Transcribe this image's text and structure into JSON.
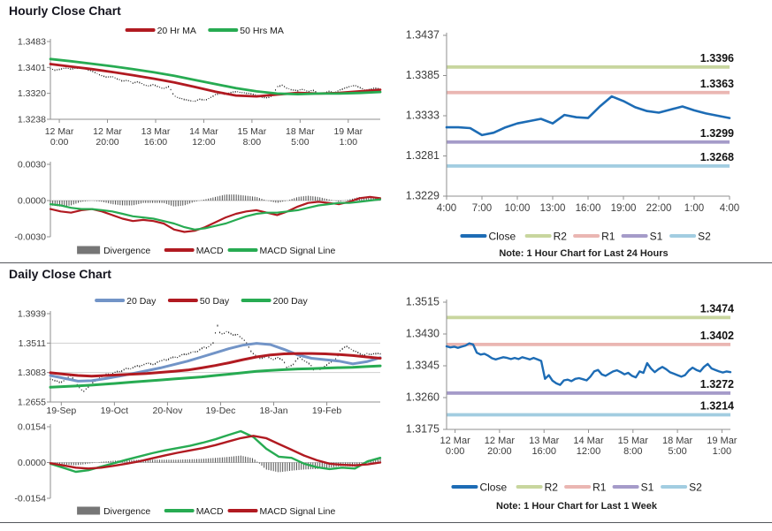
{
  "page": {
    "background": "#ffffff"
  },
  "sections": {
    "hourly": {
      "title": "Hourly Close Chart"
    },
    "daily": {
      "title": "Daily Close Chart"
    }
  },
  "notes": {
    "hourly": "Note: 1 Hour Chart for Last 24 Hours",
    "daily": "Note: 1 Hour Chart for  Last 1 Week"
  },
  "colors": {
    "dark_red": "#b11a21",
    "green": "#27ab52",
    "steel_blue": "#7294c7",
    "close_blue": "#1d6cb5",
    "r2": "#c8d69e",
    "r1": "#eab6b2",
    "s1": "#a59bc9",
    "s2": "#a2cde1",
    "divergence_gray": "#4f4f4f",
    "price_bar": "#1b1b1b",
    "axis": "#8f8f8f",
    "grid": "#cfcfcf"
  },
  "chart_data": [
    {
      "id": "hourly-price",
      "type": "price",
      "ylim": [
        1.3238,
        1.3483
      ],
      "yticks": [
        "1.3483",
        "1.3401",
        "1.3320",
        "1.3238"
      ],
      "xticks": [
        [
          "12 Mar",
          "0:00"
        ],
        [
          "12 Mar",
          "20:00"
        ],
        [
          "13 Mar",
          "16:00"
        ],
        [
          "14 Mar",
          "12:00"
        ],
        [
          "15 Mar",
          "8:00"
        ],
        [
          "18 Mar",
          "5:00"
        ],
        [
          "19 Mar",
          "1:00"
        ]
      ],
      "legend": [
        {
          "label": "20 Hr MA",
          "color": "#b11a21",
          "swatch": "line"
        },
        {
          "label": "50 Hrs MA",
          "color": "#27ab52",
          "swatch": "line"
        }
      ],
      "price_bars": {
        "color": "#1b1b1b",
        "values": [
          1.3398,
          1.3392,
          1.3396,
          1.34,
          1.3396,
          1.3399,
          1.3401,
          1.3395,
          1.339,
          1.3383,
          1.3375,
          1.337,
          1.3373,
          1.3365,
          1.3358,
          1.3361,
          1.3352,
          1.3356,
          1.3348,
          1.3343,
          1.3347,
          1.334,
          1.3335,
          1.3341,
          1.3312,
          1.3305,
          1.33,
          1.3297,
          1.3295,
          1.3301,
          1.3298,
          1.3306,
          1.3315,
          1.332,
          1.3317,
          1.3322,
          1.3325,
          1.3323,
          1.332,
          1.3318,
          1.3315,
          1.3308,
          1.3305,
          1.3311,
          1.334,
          1.3345,
          1.3335,
          1.333,
          1.3328,
          1.3333,
          1.3325,
          1.3329,
          1.332,
          1.3318,
          1.3326,
          1.3322,
          1.3329,
          1.3335,
          1.3341,
          1.3345,
          1.3338,
          1.333,
          1.3333,
          1.3336,
          1.3333
        ]
      },
      "series": [
        {
          "name": "20 Hr MA",
          "color": "#b11a21",
          "width": 2.8,
          "values": [
            1.3412,
            1.3404,
            1.3396,
            1.3387,
            1.3377,
            1.3366,
            1.3354,
            1.334,
            1.3325,
            1.3313,
            1.331,
            1.3316,
            1.3321,
            1.3319,
            1.3321,
            1.3326,
            1.3331
          ]
        },
        {
          "name": "50 Hrs MA",
          "color": "#27ab52",
          "width": 2.8,
          "values": [
            1.3428,
            1.3421,
            1.3413,
            1.3405,
            1.3396,
            1.3386,
            1.3375,
            1.3362,
            1.3349,
            1.3336,
            1.3326,
            1.3319,
            1.3317,
            1.3319,
            1.3319,
            1.3321,
            1.3324
          ]
        }
      ]
    },
    {
      "id": "hourly-macd",
      "type": "macd",
      "ylim": [
        -0.003,
        0.003
      ],
      "yticks": [
        "0.0030",
        "0.0000",
        "-0.0030"
      ],
      "legend": [
        {
          "label": "Divergence",
          "color": "#767676",
          "swatch": "bar"
        },
        {
          "label": "MACD",
          "color": "#b11a21",
          "swatch": "line"
        },
        {
          "label": "MACD Signal Line",
          "color": "#27ab52",
          "swatch": "line"
        }
      ],
      "divergence": {
        "color": "#4f4f4f",
        "values": [
          -0.0004,
          -0.0005,
          -0.0004,
          -0.0001,
          0.0,
          -0.0001,
          -0.0003,
          -0.0004,
          -0.0004,
          -0.0002,
          -0.0002,
          -0.0002,
          -0.0005,
          -0.0004,
          -0.0001,
          0.0001,
          0.0003,
          0.0005,
          0.0005,
          0.0004,
          0.0003,
          0.0,
          -0.0002,
          0.0,
          0.0003,
          0.0004,
          0.0003,
          0.0001,
          -0.0001,
          0.0001,
          0.0003,
          0.0003,
          0.0001
        ]
      },
      "series": [
        {
          "name": "MACD",
          "color": "#b11a21",
          "width": 2.2,
          "values": [
            -0.0007,
            -0.0009,
            -0.001,
            -0.0008,
            -0.0007,
            -0.0009,
            -0.0012,
            -0.0015,
            -0.0017,
            -0.0016,
            -0.0017,
            -0.0019,
            -0.0024,
            -0.0026,
            -0.0025,
            -0.0022,
            -0.0018,
            -0.0014,
            -0.0011,
            -0.0009,
            -0.0008,
            -0.001,
            -0.0012,
            -0.0009,
            -0.0005,
            -0.0002,
            -0.0001,
            -0.0002,
            -0.0003,
            -0.0001,
            0.0002,
            0.0003,
            0.0002
          ]
        },
        {
          "name": "MACD Signal Line",
          "color": "#27ab52",
          "width": 2.2,
          "values": [
            -0.0003,
            -0.0004,
            -0.0006,
            -0.0007,
            -0.0007,
            -0.0008,
            -0.0009,
            -0.0011,
            -0.0013,
            -0.0014,
            -0.0015,
            -0.0017,
            -0.0019,
            -0.0022,
            -0.0024,
            -0.0023,
            -0.0021,
            -0.0019,
            -0.0016,
            -0.0013,
            -0.0011,
            -0.001,
            -0.001,
            -0.0009,
            -0.0008,
            -0.0006,
            -0.0004,
            -0.0003,
            -0.0002,
            -0.0002,
            -0.0001,
            0.0,
            0.0001
          ]
        }
      ]
    },
    {
      "id": "hourly-pivot",
      "type": "pivot",
      "ylim": [
        1.3229,
        1.3437
      ],
      "yticks": [
        "1.3437",
        "1.3385",
        "1.3333",
        "1.3281",
        "1.3229"
      ],
      "xticks": [
        "4:00",
        "7:00",
        "10:00",
        "13:00",
        "16:00",
        "19:00",
        "22:00",
        "1:00",
        "4:00"
      ],
      "levels": [
        {
          "name": "R2",
          "value": 1.3396,
          "label": "1.3396",
          "color": "#c8d69e"
        },
        {
          "name": "R1",
          "value": 1.3363,
          "label": "1.3363",
          "color": "#eab6b2"
        },
        {
          "name": "S1",
          "value": 1.3299,
          "label": "1.3299",
          "color": "#a59bc9"
        },
        {
          "name": "S2",
          "value": 1.3268,
          "label": "1.3268",
          "color": "#a2cde1"
        }
      ],
      "legend": [
        {
          "label": "Close",
          "color": "#1d6cb5",
          "swatch": "line"
        },
        {
          "label": "R2",
          "color": "#c8d69e",
          "swatch": "line"
        },
        {
          "label": "R1",
          "color": "#eab6b2",
          "swatch": "line"
        },
        {
          "label": "S1",
          "color": "#a59bc9",
          "swatch": "line"
        },
        {
          "label": "S2",
          "color": "#a2cde1",
          "swatch": "line"
        }
      ],
      "series": [
        {
          "name": "Close",
          "color": "#1d6cb5",
          "width": 2.6,
          "values": [
            1.3318,
            1.3318,
            1.3317,
            1.3308,
            1.3311,
            1.3318,
            1.3323,
            1.3326,
            1.3329,
            1.3323,
            1.3334,
            1.3331,
            1.333,
            1.3345,
            1.3358,
            1.3352,
            1.3344,
            1.3339,
            1.3337,
            1.3341,
            1.3345,
            1.334,
            1.3336,
            1.3333,
            1.333
          ]
        }
      ]
    },
    {
      "id": "daily-price",
      "type": "price",
      "ylim": [
        1.2655,
        1.3939
      ],
      "yticks": [
        "1.3939",
        "1.3511",
        "1.3083",
        "1.2655"
      ],
      "grid_ticks": [
        1,
        2
      ],
      "xticks": [
        "19-Sep",
        "19-Oct",
        "20-Nov",
        "19-Dec",
        "18-Jan",
        "19-Feb"
      ],
      "legend": [
        {
          "label": "20 Day",
          "color": "#7294c7",
          "swatch": "line"
        },
        {
          "label": "50 Day",
          "color": "#b11a21",
          "swatch": "line"
        },
        {
          "label": "200 Day",
          "color": "#27ab52",
          "swatch": "line"
        }
      ],
      "price_bars": {
        "color": "#1b1b1b",
        "values": [
          1.299,
          1.2972,
          1.2955,
          1.2935,
          1.2962,
          1.3,
          1.3042,
          1.2985,
          1.2905,
          1.2845,
          1.2812,
          1.2855,
          1.2902,
          1.295,
          1.2982,
          1.3012,
          1.304,
          1.3062,
          1.305,
          1.3082,
          1.31,
          1.309,
          1.3122,
          1.315,
          1.3132,
          1.3162,
          1.318,
          1.3172,
          1.32,
          1.3222,
          1.3212,
          1.3192,
          1.3232,
          1.3252,
          1.3272,
          1.3262,
          1.329,
          1.331,
          1.3302,
          1.333,
          1.335,
          1.3342,
          1.3372,
          1.339,
          1.3382,
          1.3422,
          1.345,
          1.3442,
          1.3482,
          1.352,
          1.379,
          1.364,
          1.3652,
          1.3682,
          1.3652,
          1.3622,
          1.3642,
          1.3602,
          1.3562,
          1.3502,
          1.3402,
          1.3352,
          1.3322,
          1.3282,
          1.3302,
          1.3322,
          1.3292,
          1.3272,
          1.3302,
          1.3282,
          1.3252,
          1.3152,
          1.3182,
          1.3202,
          1.3282,
          1.3302,
          1.3262,
          1.3232,
          1.3202,
          1.3122,
          1.3152,
          1.3132,
          1.3162,
          1.3192,
          1.3232,
          1.3262,
          1.3302,
          1.3402,
          1.3442,
          1.3462,
          1.3432,
          1.3402,
          1.3382,
          1.3352,
          1.3332,
          1.3362,
          1.3345,
          1.3352,
          1.336,
          1.3355
        ]
      },
      "series": [
        {
          "name": "20 Day",
          "color": "#7294c7",
          "width": 3,
          "values": [
            1.304,
            1.3,
            1.2958,
            1.2965,
            1.2995,
            1.303,
            1.307,
            1.311,
            1.315,
            1.32,
            1.325,
            1.331,
            1.337,
            1.343,
            1.348,
            1.3508,
            1.349,
            1.342,
            1.334,
            1.329,
            1.327,
            1.325,
            1.321,
            1.324,
            1.33
          ]
        },
        {
          "name": "50 Day",
          "color": "#b11a21",
          "width": 3,
          "values": [
            1.308,
            1.306,
            1.304,
            1.303,
            1.304,
            1.305,
            1.306,
            1.307,
            1.3085,
            1.31,
            1.312,
            1.315,
            1.3185,
            1.3225,
            1.327,
            1.331,
            1.334,
            1.3355,
            1.336,
            1.336,
            1.3355,
            1.3345,
            1.333,
            1.331,
            1.329
          ]
        },
        {
          "name": "200 Day",
          "color": "#27ab52",
          "width": 3,
          "values": [
            1.287,
            1.288,
            1.289,
            1.29,
            1.2915,
            1.293,
            1.2945,
            1.296,
            1.2975,
            1.299,
            1.3005,
            1.302,
            1.304,
            1.306,
            1.308,
            1.31,
            1.3115,
            1.3125,
            1.3135,
            1.314,
            1.3148,
            1.3155,
            1.316,
            1.317,
            1.318
          ]
        }
      ]
    },
    {
      "id": "daily-macd",
      "type": "macd",
      "ylim": [
        -0.0154,
        0.0154
      ],
      "yticks": [
        "0.0154",
        "0.0000",
        "-0.0154"
      ],
      "legend": [
        {
          "label": "Divergence",
          "color": "#767676",
          "swatch": "bar"
        },
        {
          "label": "MACD",
          "color": "#27ab52",
          "swatch": "line"
        },
        {
          "label": "MACD Signal Line",
          "color": "#b11a21",
          "swatch": "line"
        }
      ],
      "divergence": {
        "color": "#4f4f4f",
        "values": [
          -0.0002,
          -0.0008,
          -0.0012,
          -0.0005,
          0.0003,
          0.0008,
          0.001,
          0.0012,
          0.0012,
          0.0012,
          0.0012,
          0.0014,
          0.0016,
          0.002,
          0.0024,
          0.003,
          0.0018,
          -0.003,
          -0.0042,
          -0.0035,
          -0.003,
          -0.0028,
          -0.0022,
          -0.0015,
          -0.0018,
          0.001,
          0.0018
        ]
      },
      "series": [
        {
          "name": "MACD",
          "color": "#27ab52",
          "width": 2.4,
          "values": [
            -0.0005,
            -0.0022,
            -0.004,
            -0.0033,
            -0.0018,
            -0.0003,
            0.0012,
            0.0026,
            0.004,
            0.0052,
            0.0062,
            0.0072,
            0.0085,
            0.01,
            0.0118,
            0.0135,
            0.011,
            0.006,
            0.0025,
            0.002,
            -0.0005,
            -0.002,
            -0.0028,
            -0.0022,
            -0.0026,
            0.0005,
            0.002
          ]
        },
        {
          "name": "MACD Signal Line",
          "color": "#b11a21",
          "width": 2.4,
          "values": [
            -0.0003,
            -0.0012,
            -0.0022,
            -0.0026,
            -0.0022,
            -0.0014,
            -0.0005,
            0.0005,
            0.0018,
            0.003,
            0.0042,
            0.0052,
            0.0062,
            0.0075,
            0.009,
            0.0105,
            0.0115,
            0.0105,
            0.008,
            0.0055,
            0.003,
            0.001,
            -0.0005,
            -0.001,
            -0.0012,
            -0.0008,
            0.0
          ]
        }
      ]
    },
    {
      "id": "daily-pivot",
      "type": "pivot",
      "ylim": [
        1.3175,
        1.3515
      ],
      "yticks": [
        "1.3515",
        "1.3430",
        "1.3345",
        "1.3260",
        "1.3175"
      ],
      "xticks": [
        [
          "12 Mar",
          "0:00"
        ],
        [
          "12 Mar",
          "20:00"
        ],
        [
          "13 Mar",
          "16:00"
        ],
        [
          "14 Mar",
          "12:00"
        ],
        [
          "15 Mar",
          "8:00"
        ],
        [
          "18 Mar",
          "5:00"
        ],
        [
          "19 Mar",
          "1:00"
        ]
      ],
      "levels": [
        {
          "name": "R2",
          "value": 1.3474,
          "label": "1.3474",
          "color": "#c8d69e"
        },
        {
          "name": "R1",
          "value": 1.3402,
          "label": "1.3402",
          "color": "#eab6b2"
        },
        {
          "name": "S1",
          "value": 1.3272,
          "label": "1.3272",
          "color": "#a59bc9"
        },
        {
          "name": "S2",
          "value": 1.3214,
          "label": "1.3214",
          "color": "#a2cde1"
        }
      ],
      "legend": [
        {
          "label": "Close",
          "color": "#1d6cb5",
          "swatch": "line"
        },
        {
          "label": "R2",
          "color": "#c8d69e",
          "swatch": "line"
        },
        {
          "label": "R1",
          "color": "#eab6b2",
          "swatch": "line"
        },
        {
          "label": "S1",
          "color": "#a59bc9",
          "swatch": "line"
        },
        {
          "label": "S2",
          "color": "#a2cde1",
          "swatch": "line"
        }
      ],
      "series": [
        {
          "name": "Close",
          "color": "#1d6cb5",
          "width": 2.4,
          "values": [
            1.3397,
            1.3394,
            1.3396,
            1.3393,
            1.3396,
            1.3399,
            1.3405,
            1.3402,
            1.338,
            1.3375,
            1.3377,
            1.3372,
            1.3365,
            1.3362,
            1.3365,
            1.3368,
            1.3366,
            1.3363,
            1.3366,
            1.3363,
            1.3368,
            1.3365,
            1.3362,
            1.3366,
            1.3362,
            1.3358,
            1.331,
            1.332,
            1.3305,
            1.3298,
            1.3294,
            1.3306,
            1.3308,
            1.3304,
            1.331,
            1.3312,
            1.3309,
            1.3306,
            1.3316,
            1.333,
            1.3334,
            1.3322,
            1.3318,
            1.3324,
            1.333,
            1.3333,
            1.3328,
            1.3322,
            1.3326,
            1.3318,
            1.3314,
            1.333,
            1.3326,
            1.3352,
            1.3338,
            1.3328,
            1.3336,
            1.3342,
            1.3336,
            1.3328,
            1.3324,
            1.332,
            1.3316,
            1.332,
            1.3332,
            1.334,
            1.3334,
            1.333,
            1.3342,
            1.335,
            1.3338,
            1.3334,
            1.333,
            1.3327,
            1.333,
            1.3328
          ]
        }
      ]
    }
  ]
}
